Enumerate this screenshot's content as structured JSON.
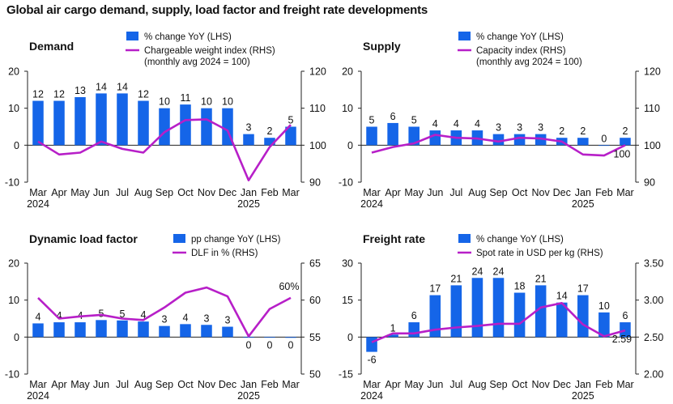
{
  "page_title": "Global air cargo demand, supply, load factor and freight rate developments",
  "colors": {
    "bar": "#1565e8",
    "line": "#b71fc8",
    "axis": "#222222"
  },
  "chart_data": [
    {
      "id": "demand",
      "type": "bar",
      "title": "Demand",
      "categories": [
        "Mar",
        "Apr",
        "May",
        "Jun",
        "Jul",
        "Aug",
        "Sep",
        "Oct",
        "Nov",
        "Dec",
        "Jan",
        "Feb",
        "Mar"
      ],
      "years": [
        {
          "label": "2024",
          "index": 0
        },
        {
          "label": "2025",
          "index": 10
        }
      ],
      "left_axis": {
        "min": -10,
        "max": 20,
        "ticks": [
          -10,
          0,
          10,
          20
        ]
      },
      "right_axis": {
        "min": 90,
        "max": 120,
        "ticks": [
          90,
          100,
          110,
          120
        ]
      },
      "series": [
        {
          "name": "% change YoY (LHS)",
          "kind": "bar",
          "axis": "left",
          "values": [
            12,
            12,
            13,
            14,
            14,
            12,
            10,
            11,
            10,
            10,
            3,
            2,
            5
          ],
          "labels": [
            "12",
            "12",
            "13",
            "14",
            "14",
            "12",
            "10",
            "11",
            "10",
            "10",
            "3",
            "2",
            "5"
          ]
        },
        {
          "name": "Chargeable weight index (RHS)",
          "name2": "(monthly avg 2024 = 100)",
          "kind": "line",
          "axis": "right",
          "values": [
            101,
            97.5,
            98,
            101,
            99,
            98,
            103.5,
            106.8,
            107,
            104,
            90.5,
            99.5,
            105.5
          ],
          "labels": []
        }
      ]
    },
    {
      "id": "supply",
      "type": "bar",
      "title": "Supply",
      "categories": [
        "Mar",
        "Apr",
        "May",
        "Jun",
        "Jul",
        "Aug",
        "Sep",
        "Oct",
        "Nov",
        "Dec",
        "Jan",
        "Feb",
        "Mar"
      ],
      "years": [
        {
          "label": "2024",
          "index": 0
        },
        {
          "label": "2025",
          "index": 10
        }
      ],
      "left_axis": {
        "min": -10,
        "max": 20,
        "ticks": [
          -10,
          0,
          10,
          20
        ]
      },
      "right_axis": {
        "min": 90,
        "max": 120,
        "ticks": [
          90,
          100,
          110,
          120
        ]
      },
      "series": [
        {
          "name": "% change YoY (LHS)",
          "kind": "bar",
          "axis": "left",
          "values": [
            5,
            6,
            5,
            4,
            4,
            4,
            3,
            3,
            3,
            2,
            2,
            0,
            2
          ],
          "labels": [
            "5",
            "6",
            "5",
            "4",
            "4",
            "4",
            "3",
            "3",
            "3",
            "2",
            "2",
            "0",
            "2"
          ]
        },
        {
          "name": "Capacity index (RHS)",
          "name2": "(monthly avg 2024 = 100)",
          "kind": "line",
          "axis": "right",
          "values": [
            98,
            99.5,
            100.5,
            102.8,
            102,
            101.8,
            101,
            102,
            101.8,
            101,
            97.5,
            97.2,
            100
          ],
          "labels": [
            "100"
          ]
        }
      ]
    },
    {
      "id": "dlf",
      "type": "bar",
      "title": "Dynamic load factor",
      "categories": [
        "Mar",
        "Apr",
        "May",
        "Jun",
        "Jul",
        "Aug",
        "Sep",
        "Oct",
        "Nov",
        "Dec",
        "Jan",
        "Feb",
        "Mar"
      ],
      "years": [
        {
          "label": "2024",
          "index": 0
        },
        {
          "label": "2025",
          "index": 10
        }
      ],
      "left_axis": {
        "min": -10,
        "max": 20,
        "ticks": [
          -10,
          0,
          10,
          20
        ]
      },
      "right_axis": {
        "min": 50,
        "max": 65,
        "ticks": [
          50,
          55,
          60,
          65
        ]
      },
      "series": [
        {
          "name": "pp change YoY (LHS)",
          "kind": "bar",
          "axis": "left",
          "values": [
            3.7,
            4,
            4,
            4.6,
            4.5,
            4.2,
            3,
            3.5,
            3.3,
            2.8,
            0,
            0,
            -0.2
          ],
          "labels": [
            "4",
            "4",
            "4",
            "5",
            "5",
            "4",
            "3",
            "4",
            "3",
            "3",
            "0",
            "0",
            "0"
          ]
        },
        {
          "name": "DLF in % (RHS)",
          "kind": "line",
          "axis": "right",
          "values": [
            60.3,
            57.5,
            57.8,
            58,
            57.5,
            57.3,
            59,
            61,
            61.7,
            60.5,
            55.1,
            58.8,
            60.3
          ],
          "labels": [
            "60%"
          ]
        }
      ]
    },
    {
      "id": "freight",
      "type": "bar",
      "title": "Freight rate",
      "categories": [
        "Mar",
        "Apr",
        "May",
        "Jun",
        "Jul",
        "Aug",
        "Sep",
        "Oct",
        "Nov",
        "Dec",
        "Jan",
        "Feb",
        "Mar"
      ],
      "years": [
        {
          "label": "2024",
          "index": 0
        },
        {
          "label": "2025",
          "index": 10
        }
      ],
      "left_axis": {
        "min": -15,
        "max": 30,
        "ticks": [
          -15,
          0,
          15,
          30
        ]
      },
      "right_axis": {
        "min": 2.0,
        "max": 3.5,
        "ticks": [
          "2.00",
          "2.50",
          "3.00",
          "3.50"
        ]
      },
      "series": [
        {
          "name": "% change YoY (LHS)",
          "kind": "bar",
          "axis": "left",
          "values": [
            -6,
            1,
            6,
            17,
            21,
            24,
            24,
            18,
            21,
            14,
            17,
            10,
            6
          ],
          "labels": [
            "-6",
            "1",
            "6",
            "17",
            "21",
            "24",
            "24",
            "18",
            "21",
            "14",
            "17",
            "10",
            "6"
          ]
        },
        {
          "name": "Spot rate in USD per kg (RHS)",
          "kind": "line",
          "axis": "right",
          "values": [
            2.43,
            2.55,
            2.55,
            2.6,
            2.63,
            2.65,
            2.68,
            2.68,
            2.9,
            2.96,
            2.67,
            2.51,
            2.59
          ],
          "labels": [
            "2.59"
          ]
        }
      ]
    }
  ]
}
